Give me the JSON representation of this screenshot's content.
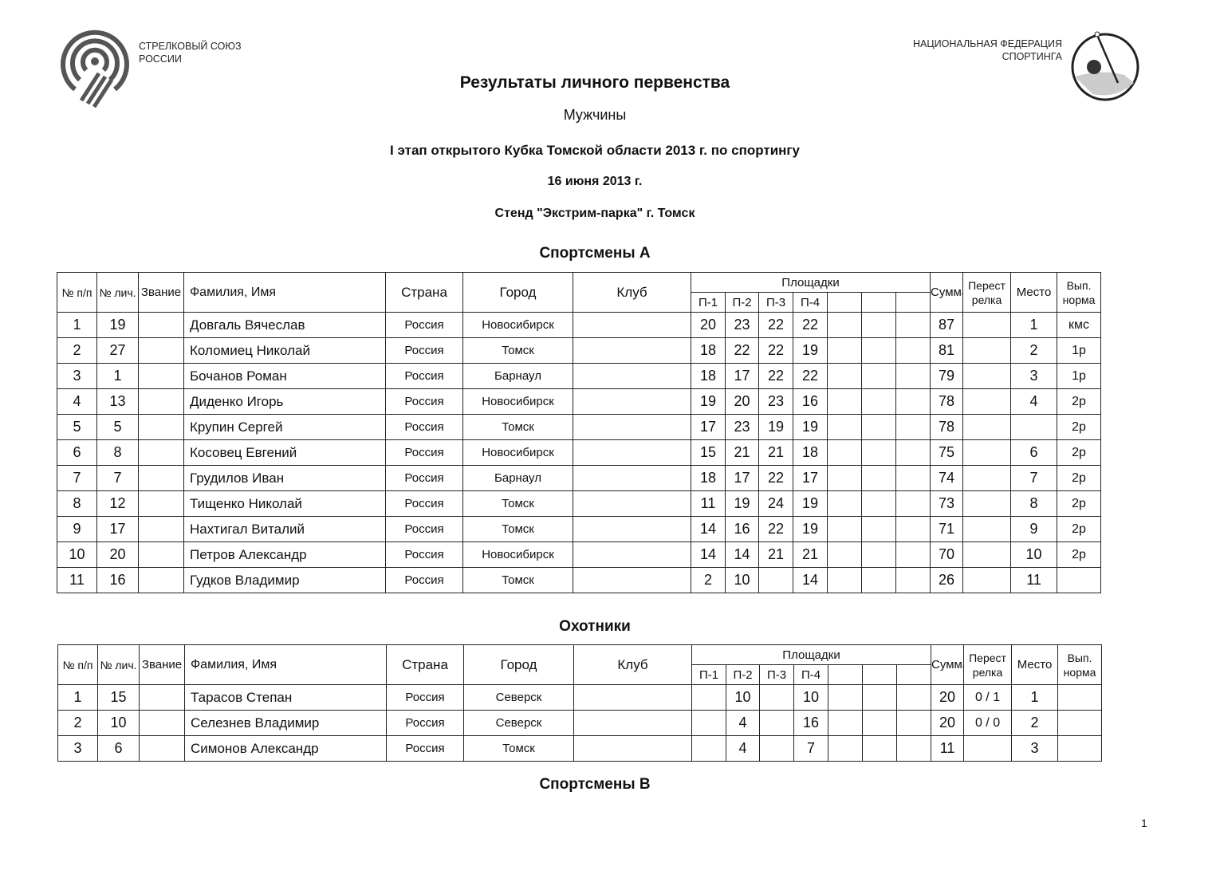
{
  "logos": {
    "left": {
      "line1": "СТРЕЛКОВЫЙ СОЮЗ",
      "line2": "РОССИИ"
    },
    "right": {
      "line1": "НАЦИОНАЛЬНАЯ ФЕДЕРАЦИЯ",
      "line2": "СПОРТИНГА"
    }
  },
  "header": {
    "title": "Результаты личного первенства",
    "subtitle": "Мужчины",
    "event": "I этап открытого Кубка Томской области 2013 г. по спортингу",
    "date": "16 июня 2013 г.",
    "venue": "Стенд \"Экстрим-парка\" г. Томск"
  },
  "columns": {
    "num": "№ п/п",
    "pers": "№ лич.",
    "rank": "Звание",
    "name": "Фамилия, Имя",
    "country": "Страна",
    "city": "Город",
    "club": "Клуб",
    "grounds": "Площадки",
    "grounds_sub": [
      "П-1",
      "П-2",
      "П-3",
      "П-4",
      "",
      "",
      ""
    ],
    "sum": "Сумма",
    "shootoff": "Перест релка",
    "place": "Место",
    "norm": "Вып. норма"
  },
  "sections": [
    {
      "title": "Спортсмены А",
      "rows": [
        {
          "n": "1",
          "id": "19",
          "rank": "",
          "name": "Довгаль Вячеслав",
          "country": "Россия",
          "city": "Новосибирск",
          "club": "",
          "p": [
            "20",
            "23",
            "22",
            "22",
            "",
            "",
            ""
          ],
          "sum": "87",
          "shootoff": "",
          "place": "1",
          "norm": "кмс"
        },
        {
          "n": "2",
          "id": "27",
          "rank": "",
          "name": "Коломиец Николай",
          "country": "Россия",
          "city": "Томск",
          "club": "",
          "p": [
            "18",
            "22",
            "22",
            "19",
            "",
            "",
            ""
          ],
          "sum": "81",
          "shootoff": "",
          "place": "2",
          "norm": "1р"
        },
        {
          "n": "3",
          "id": "1",
          "rank": "",
          "name": "Бочанов Роман",
          "country": "Россия",
          "city": "Барнаул",
          "club": "",
          "p": [
            "18",
            "17",
            "22",
            "22",
            "",
            "",
            ""
          ],
          "sum": "79",
          "shootoff": "",
          "place": "3",
          "norm": "1р"
        },
        {
          "n": "4",
          "id": "13",
          "rank": "",
          "name": "Диденко Игорь",
          "country": "Россия",
          "city": "Новосибирск",
          "club": "",
          "p": [
            "19",
            "20",
            "23",
            "16",
            "",
            "",
            ""
          ],
          "sum": "78",
          "shootoff": "",
          "place": "4",
          "norm": "2р"
        },
        {
          "n": "5",
          "id": "5",
          "rank": "",
          "name": "Крупин Сергей",
          "country": "Россия",
          "city": "Томск",
          "club": "",
          "p": [
            "17",
            "23",
            "19",
            "19",
            "",
            "",
            ""
          ],
          "sum": "78",
          "shootoff": "",
          "place": "",
          "norm": "2р"
        },
        {
          "n": "6",
          "id": "8",
          "rank": "",
          "name": "Косовец Евгений",
          "country": "Россия",
          "city": "Новосибирск",
          "club": "",
          "p": [
            "15",
            "21",
            "21",
            "18",
            "",
            "",
            ""
          ],
          "sum": "75",
          "shootoff": "",
          "place": "6",
          "norm": "2р"
        },
        {
          "n": "7",
          "id": "7",
          "rank": "",
          "name": "Грудилов Иван",
          "country": "Россия",
          "city": "Барнаул",
          "club": "",
          "p": [
            "18",
            "17",
            "22",
            "17",
            "",
            "",
            ""
          ],
          "sum": "74",
          "shootoff": "",
          "place": "7",
          "norm": "2р"
        },
        {
          "n": "8",
          "id": "12",
          "rank": "",
          "name": "Тищенко Николай",
          "country": "Россия",
          "city": "Томск",
          "club": "",
          "p": [
            "11",
            "19",
            "24",
            "19",
            "",
            "",
            ""
          ],
          "sum": "73",
          "shootoff": "",
          "place": "8",
          "norm": "2р"
        },
        {
          "n": "9",
          "id": "17",
          "rank": "",
          "name": "Нахтигал Виталий",
          "country": "Россия",
          "city": "Томск",
          "club": "",
          "p": [
            "14",
            "16",
            "22",
            "19",
            "",
            "",
            ""
          ],
          "sum": "71",
          "shootoff": "",
          "place": "9",
          "norm": "2р"
        },
        {
          "n": "10",
          "id": "20",
          "rank": "",
          "name": "Петров Александр",
          "country": "Россия",
          "city": "Новосибирск",
          "club": "",
          "p": [
            "14",
            "14",
            "21",
            "21",
            "",
            "",
            ""
          ],
          "sum": "70",
          "shootoff": "",
          "place": "10",
          "norm": "2р"
        },
        {
          "n": "11",
          "id": "16",
          "rank": "",
          "name": "Гудков Владимир",
          "country": "Россия",
          "city": "Томск",
          "club": "",
          "p": [
            "2",
            "10",
            "",
            "14",
            "",
            "",
            ""
          ],
          "sum": "26",
          "shootoff": "",
          "place": "11",
          "norm": ""
        }
      ]
    },
    {
      "title": "Охотники",
      "rows": [
        {
          "n": "1",
          "id": "15",
          "rank": "",
          "name": "Тарасов Степан",
          "country": "Россия",
          "city": "Северск",
          "club": "",
          "p": [
            "",
            "10",
            "",
            "10",
            "",
            "",
            ""
          ],
          "sum": "20",
          "shootoff": "0 / 1",
          "place": "1",
          "norm": ""
        },
        {
          "n": "2",
          "id": "10",
          "rank": "",
          "name": "Селезнев Владимир",
          "country": "Россия",
          "city": "Северск",
          "club": "",
          "p": [
            "",
            "4",
            "",
            "16",
            "",
            "",
            ""
          ],
          "sum": "20",
          "shootoff": "0 / 0",
          "place": "2",
          "norm": ""
        },
        {
          "n": "3",
          "id": "6",
          "rank": "",
          "name": "Симонов Александр",
          "country": "Россия",
          "city": "Томск",
          "club": "",
          "p": [
            "",
            "4",
            "",
            "7",
            "",
            "",
            ""
          ],
          "sum": "11",
          "shootoff": "",
          "place": "3",
          "norm": ""
        }
      ]
    },
    {
      "title": "Спортсмены В",
      "rows": []
    }
  ],
  "page_number": "1"
}
